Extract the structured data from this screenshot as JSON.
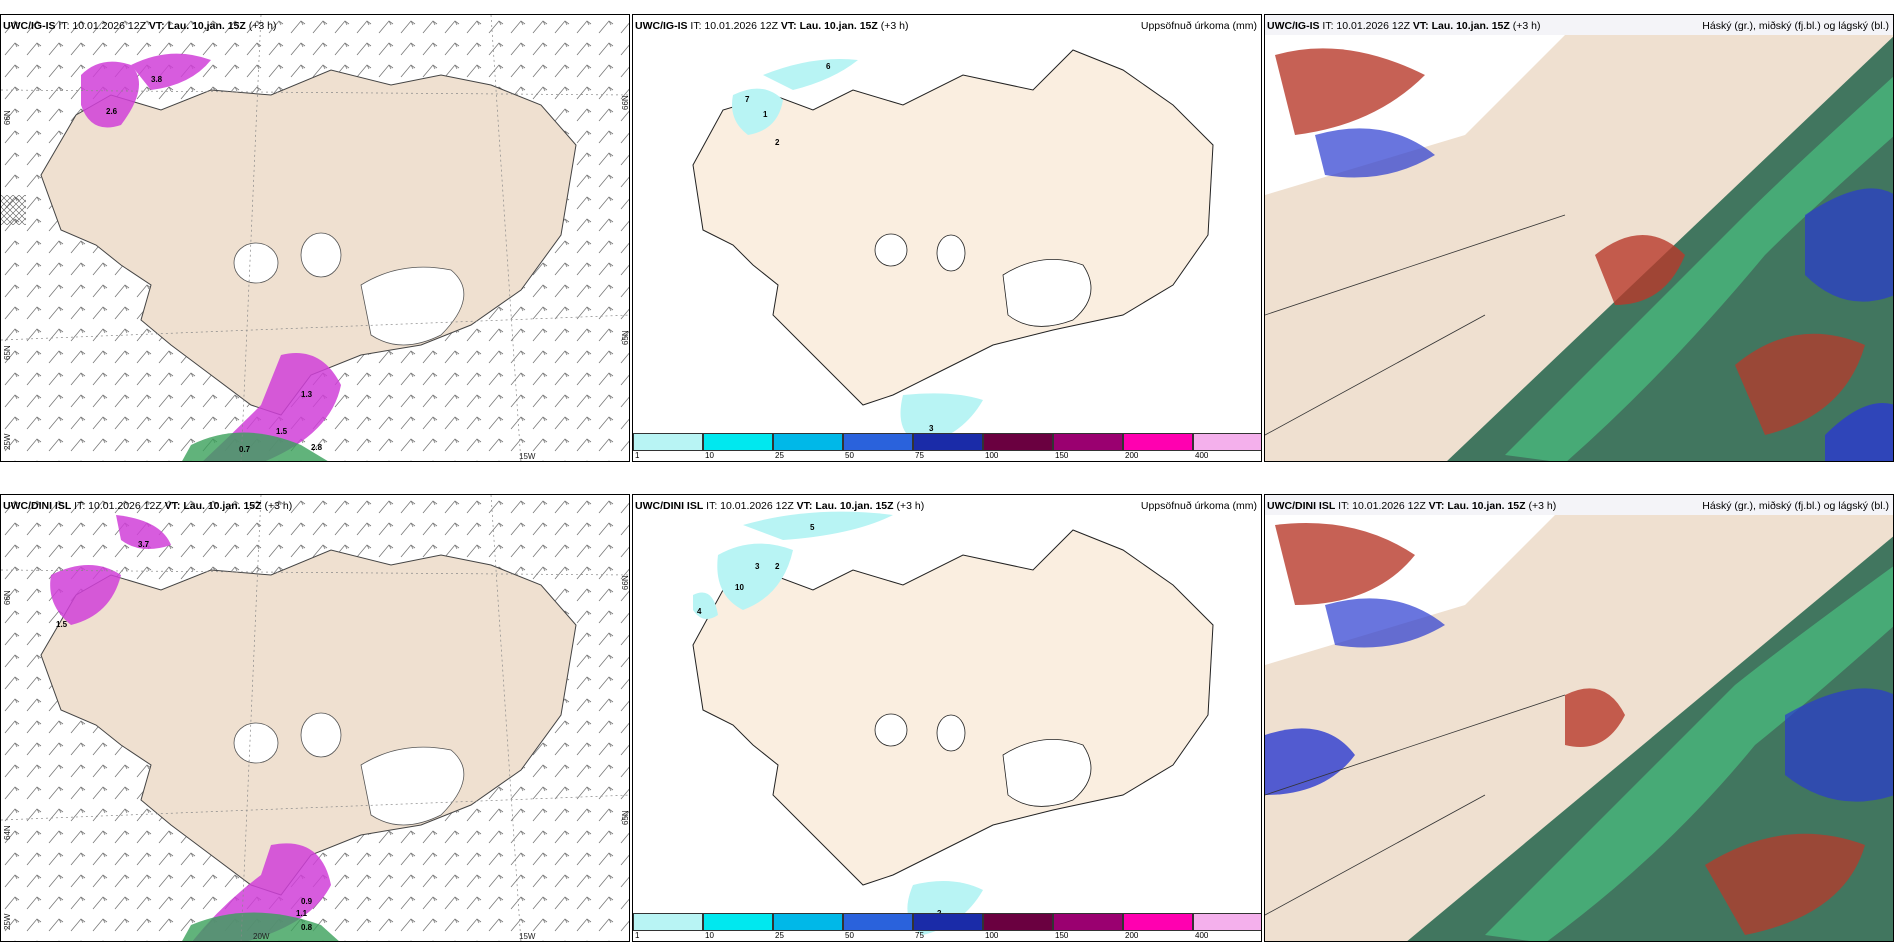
{
  "panels": {
    "p1": {
      "model": "UWC/IG-IS",
      "init": "IT: 10.01.2026 12Z",
      "valid": "VT: Lau. 10.jan. 15Z",
      "lead": "(+3 h)",
      "right": ""
    },
    "p2": {
      "model": "UWC/IG-IS",
      "init": "IT: 10.01.2026 12Z",
      "valid": "VT: Lau. 10.jan. 15Z",
      "lead": "(+3 h)",
      "right": "Uppsöfnuð úrkoma (mm)"
    },
    "p3": {
      "model": "UWC/IG-IS",
      "init": "IT: 10.01.2026 12Z",
      "valid": "VT: Lau. 10.jan. 15Z",
      "lead": "(+3 h)",
      "right": "Háský (gr.), miðský (fj.bl.) og lágský (bl.)"
    },
    "p4": {
      "model": "UWC/DINI ISL",
      "init": "IT: 10.01.2026 12Z",
      "valid": "VT: Lau. 10.jan. 15Z",
      "lead": "(+3 h)",
      "right": ""
    },
    "p5": {
      "model": "UWC/DINI ISL",
      "init": "IT: 10.01.2026 12Z",
      "valid": "VT: Lau. 10.jan. 15Z",
      "lead": "(+3 h)",
      "right": "Uppsöfnuð úrkoma (mm)"
    },
    "p6": {
      "model": "UWC/DINI ISL",
      "init": "IT: 10.01.2026 12Z",
      "valid": "VT: Lau. 10.jan. 15Z",
      "lead": "(+3 h)",
      "right": "Háský (gr.), miðský (fj.bl.) og lágský (bl.)"
    }
  },
  "grid_labels": {
    "lat65": "65N",
    "lat64": "64N",
    "lat66": "66N",
    "lon25": "25W",
    "lon20": "20W",
    "lon15": "15W"
  },
  "colorbar": {
    "colors": [
      "#b8f4f4",
      "#00e8ef",
      "#00b8e8",
      "#2a62dc",
      "#1a2ba8",
      "#6a0040",
      "#9a0070",
      "#ff00b0",
      "#f4b0ec"
    ],
    "ticks": [
      "1",
      "10",
      "25",
      "50",
      "75",
      "100",
      "150",
      "200",
      "400"
    ]
  },
  "precip_labels_top": [
    "6",
    "1",
    "7",
    "2",
    "3"
  ],
  "precip_labels_bottom": [
    "5",
    "3",
    "2",
    "10",
    "4",
    "2"
  ],
  "wind_labels_top": [
    "3.8",
    "2.6",
    "1.5",
    "0.7",
    "2.8",
    "1.3"
  ],
  "wind_labels_bottom": [
    "3.7",
    "1.5",
    "0.9",
    "1.1",
    "0.8"
  ],
  "colors": {
    "land": "#efe0d0",
    "sea": "#ffffff",
    "precip_pink": "#d040d8",
    "green": "#3aa05a",
    "cloud_dark": "#2e6a52",
    "cloud_red": "#b83a2a",
    "cloud_blue": "#2a3ad0"
  }
}
